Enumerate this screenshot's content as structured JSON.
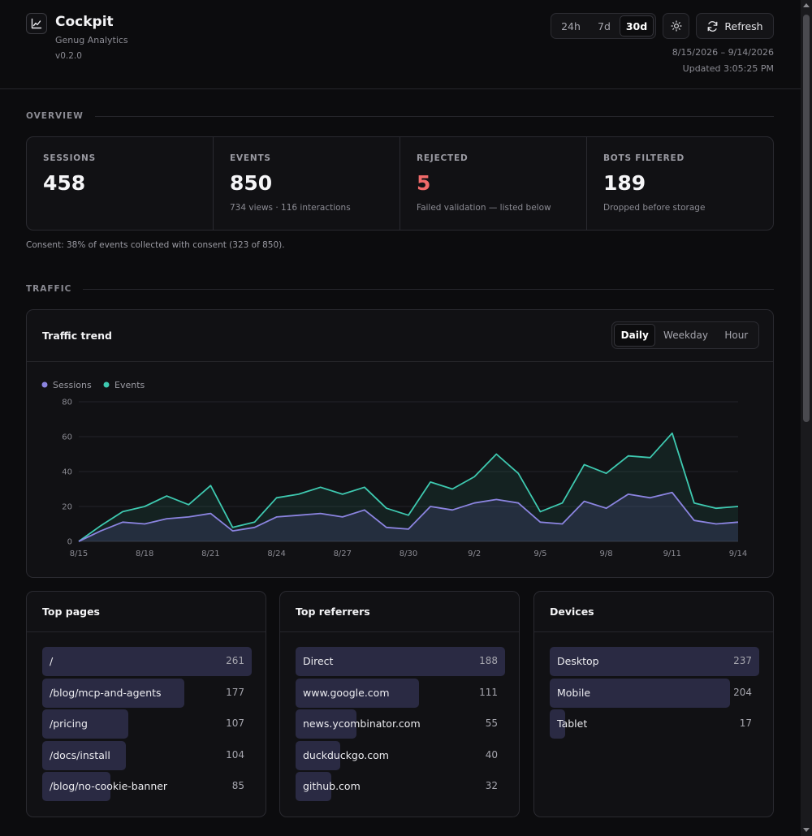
{
  "app": {
    "title": "Cockpit",
    "subtitle": "Genug Analytics",
    "version": "v0.2.0",
    "logo_icon": "chart-line-icon"
  },
  "header": {
    "range_options": [
      "24h",
      "7d",
      "30d"
    ],
    "range_selected": "30d",
    "theme_icon": "sun-icon",
    "refresh_icon": "refresh-icon",
    "refresh_label": "Refresh",
    "date_range": "8/15/2026 – 9/14/2026",
    "updated": "Updated 3:05:25 PM"
  },
  "overview": {
    "heading": "OVERVIEW",
    "stats": [
      {
        "label": "SESSIONS",
        "value": "458",
        "sub": ""
      },
      {
        "label": "EVENTS",
        "value": "850",
        "sub": "734 views · 116 interactions"
      },
      {
        "label": "REJECTED",
        "value": "5",
        "sub": "Failed validation — listed below"
      },
      {
        "label": "BOTS FILTERED",
        "value": "189",
        "sub": "Dropped before storage"
      }
    ],
    "consent": "Consent: 38% of events collected with consent (323 of 850)."
  },
  "traffic": {
    "heading": "TRAFFIC",
    "card_title": "Traffic trend",
    "views": [
      "Daily",
      "Weekday",
      "Hour"
    ],
    "view_selected": "Daily"
  },
  "colors": {
    "sessions": "#8b84e0",
    "events": "#3ec9b0",
    "rejected": "#f06a6a",
    "bar": "#2a2a43"
  },
  "chart_data": {
    "type": "area",
    "x": [
      "8/15",
      "8/16",
      "8/17",
      "8/18",
      "8/19",
      "8/20",
      "8/21",
      "8/22",
      "8/23",
      "8/24",
      "8/25",
      "8/26",
      "8/27",
      "8/28",
      "8/29",
      "8/30",
      "8/31",
      "9/1",
      "9/2",
      "9/3",
      "9/4",
      "9/5",
      "9/6",
      "9/7",
      "9/8",
      "9/9",
      "9/10",
      "9/11",
      "9/12",
      "9/13",
      "9/14"
    ],
    "x_tick_labels": [
      "8/15",
      "8/18",
      "8/21",
      "8/24",
      "8/27",
      "8/30",
      "9/2",
      "9/5",
      "9/8",
      "9/11",
      "9/14"
    ],
    "series": [
      {
        "name": "Sessions",
        "values": [
          0,
          6,
          11,
          10,
          13,
          14,
          16,
          6,
          8,
          14,
          15,
          16,
          14,
          18,
          8,
          7,
          20,
          18,
          22,
          24,
          22,
          11,
          10,
          23,
          19,
          27,
          25,
          28,
          12,
          10,
          11
        ]
      },
      {
        "name": "Events",
        "values": [
          0,
          9,
          17,
          20,
          26,
          21,
          32,
          8,
          11,
          25,
          27,
          31,
          27,
          31,
          19,
          15,
          34,
          30,
          37,
          50,
          39,
          17,
          22,
          44,
          39,
          49,
          48,
          62,
          22,
          19,
          20
        ]
      }
    ],
    "ylim": [
      0,
      80
    ],
    "y_ticks": [
      0,
      20,
      40,
      60,
      80
    ],
    "grid": true,
    "legend": "top-left"
  },
  "lists": {
    "pages": {
      "title": "Top pages",
      "max": 261,
      "items": [
        {
          "label": "/",
          "value": 261
        },
        {
          "label": "/blog/mcp-and-agents",
          "value": 177
        },
        {
          "label": "/pricing",
          "value": 107
        },
        {
          "label": "/docs/install",
          "value": 104
        },
        {
          "label": "/blog/no-cookie-banner",
          "value": 85
        }
      ]
    },
    "referrers": {
      "title": "Top referrers",
      "max": 188,
      "items": [
        {
          "label": "Direct",
          "value": 188
        },
        {
          "label": "www.google.com",
          "value": 111
        },
        {
          "label": "news.ycombinator.com",
          "value": 55
        },
        {
          "label": "duckduckgo.com",
          "value": 40
        },
        {
          "label": "github.com",
          "value": 32
        }
      ]
    },
    "devices": {
      "title": "Devices",
      "max": 237,
      "items": [
        {
          "label": "Desktop",
          "value": 237
        },
        {
          "label": "Mobile",
          "value": 204
        },
        {
          "label": "Tablet",
          "value": 17
        }
      ]
    }
  }
}
